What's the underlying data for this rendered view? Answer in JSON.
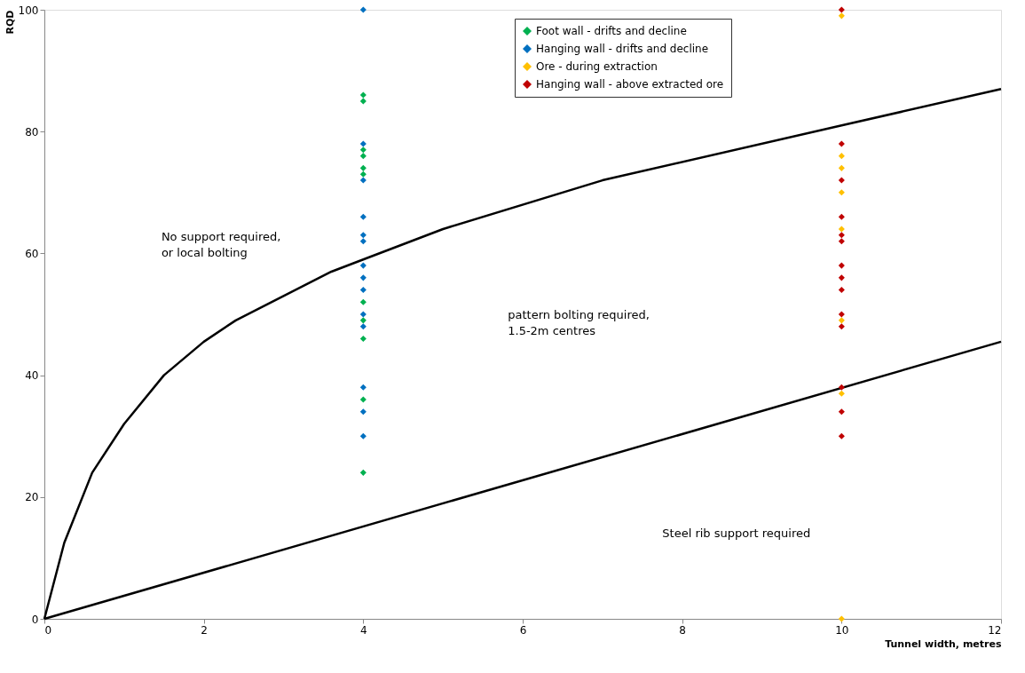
{
  "chart_data": {
    "type": "scatter",
    "xlabel": "Tunnel width, metres",
    "ylabel": "RQD",
    "xlim": [
      0,
      12
    ],
    "xticks": [
      0,
      2,
      4,
      6,
      8,
      10,
      12
    ],
    "ylim": [
      0,
      100
    ],
    "yticks": [
      0,
      20,
      40,
      60,
      80,
      100
    ],
    "grid": false,
    "legend": "top right",
    "marker": "diamond",
    "series": [
      {
        "name": "Foot wall - drifts and decline",
        "color": "#00b050",
        "x": [
          4,
          4,
          4,
          4,
          4,
          4,
          4,
          4,
          4,
          4,
          4
        ],
        "values": [
          86,
          85,
          77,
          76,
          74,
          73,
          52,
          49,
          46,
          36,
          24
        ]
      },
      {
        "name": "Hanging wall - drifts and decline",
        "color": "#0070c0",
        "x": [
          4,
          4,
          4,
          4,
          4,
          4,
          4,
          4,
          4,
          4,
          4,
          4,
          4,
          4
        ],
        "values": [
          100,
          78,
          72,
          66,
          63,
          62,
          58,
          56,
          54,
          50,
          48,
          38,
          34,
          30
        ]
      },
      {
        "name": "Ore - during extraction",
        "color": "#ffc000",
        "x": [
          10,
          10,
          10,
          10,
          10,
          10,
          10,
          10
        ],
        "values": [
          99,
          76,
          74,
          70,
          64,
          49,
          37,
          0
        ]
      },
      {
        "name": "Hanging wall - above extracted ore",
        "color": "#c00000",
        "x": [
          10,
          10,
          10,
          10,
          10,
          10,
          10,
          10,
          10,
          10,
          10,
          10,
          10,
          10
        ],
        "values": [
          100,
          78,
          72,
          66,
          63,
          62,
          58,
          56,
          54,
          50,
          48,
          38,
          34,
          30
        ]
      },
      {
        "type": "line",
        "color": "#000000",
        "marker": "none",
        "line_style": "solid",
        "x": [
          0,
          0.25,
          0.6,
          1,
          1.5,
          2,
          2.4,
          3,
          3.6,
          4,
          5,
          7,
          10,
          12
        ],
        "values": [
          0,
          12.5,
          24,
          32,
          40,
          45.5,
          49,
          53,
          57,
          59,
          64,
          72,
          81,
          87
        ]
      },
      {
        "type": "line",
        "color": "#000000",
        "marker": "none",
        "line_style": "solid",
        "x": [
          0,
          12
        ],
        "values": [
          0,
          45.5
        ]
      }
    ],
    "annotations": [
      "No support required,\nor local bolting",
      "pattern bolting required,\n1.5-2m centres",
      "Steel rib support required"
    ]
  }
}
